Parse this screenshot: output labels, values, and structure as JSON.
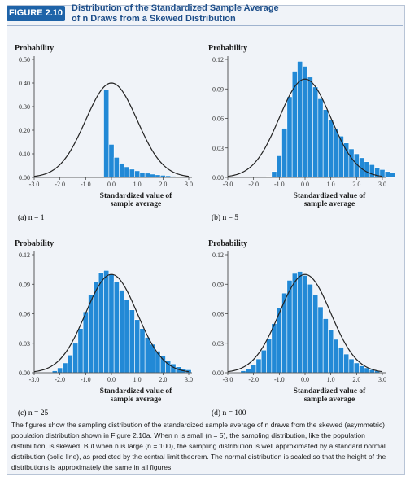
{
  "header": {
    "badge": "FIGURE 2.10",
    "title_line1": "Distribution of the Standardized Sample Average",
    "title_line2": "of n Draws from a Skewed Distribution"
  },
  "caption": "The figures show the sampling distribution of the standardized sample average of n draws from the skewed (asymmetric) population distribution shown in Figure 2.10a. When n is small (n = 5), the sampling distribution, like the population distribution, is skewed. But when n is large (n = 100), the sampling distribution is well approximated by a standard normal distribution (solid line), as predicted by the central limit theorem. The normal distribution is scaled so that the height of the distributions is approximately the same in all figures.",
  "colors": {
    "bar": "#2289d6",
    "bar_edge": "#ffffff",
    "curve": "#222222",
    "accent": "#1e63a8"
  },
  "chart_data": [
    {
      "type": "bar",
      "subcaption": "(a) n = 1",
      "ylabel": "Probability",
      "xlabel_line1": "Standardized value of",
      "xlabel_line2": "sample average",
      "ylim": [
        0,
        0.5
      ],
      "yticks": [
        "0.00",
        "0.10",
        "0.20",
        "0.30",
        "0.40",
        "0.50"
      ],
      "xlim": [
        -3.0,
        3.0
      ],
      "xticks": [
        "-3.0",
        "-2.0",
        "-1.0",
        "0.0",
        "1.0",
        "2.0",
        "3.0"
      ],
      "bin_start": -0.3,
      "bin_width": 0.2,
      "values": [
        0.37,
        0.14,
        0.085,
        0.06,
        0.045,
        0.035,
        0.028,
        0.022,
        0.018,
        0.014,
        0.011,
        0.009,
        0.007,
        0.005,
        0.004,
        0.003
      ],
      "normal_peak": 0.4
    },
    {
      "type": "bar",
      "subcaption": "(b) n = 5",
      "ylabel": "Probability",
      "xlabel_line1": "Standardized value of",
      "xlabel_line2": "sample average",
      "ylim": [
        0,
        0.12
      ],
      "yticks": [
        "0.00",
        "0.03",
        "0.06",
        "0.09",
        "0.12"
      ],
      "xlim": [
        -3.0,
        3.0
      ],
      "xticks": [
        "-3.0",
        "-2.0",
        "-1.0",
        "0.0",
        "1.0",
        "2.0",
        "3.0"
      ],
      "bin_start": -1.5,
      "bin_width": 0.2,
      "values": [
        0.001,
        0.006,
        0.022,
        0.05,
        0.082,
        0.108,
        0.118,
        0.113,
        0.102,
        0.092,
        0.08,
        0.069,
        0.059,
        0.05,
        0.042,
        0.035,
        0.029,
        0.024,
        0.02,
        0.016,
        0.013,
        0.01,
        0.008,
        0.006,
        0.005
      ],
      "normal_peak": 0.1
    },
    {
      "type": "bar",
      "subcaption": "(c) n = 25",
      "ylabel": "Probability",
      "xlabel_line1": "Standardized value of",
      "xlabel_line2": "sample average",
      "ylim": [
        0,
        0.12
      ],
      "yticks": [
        "0.00",
        "0.03",
        "0.06",
        "0.09",
        "0.12"
      ],
      "xlim": [
        -3.0,
        3.0
      ],
      "xticks": [
        "-3.0",
        "-2.0",
        "-1.0",
        "0.0",
        "1.0",
        "2.0",
        "3.0"
      ],
      "bin_start": -2.3,
      "bin_width": 0.2,
      "values": [
        0.002,
        0.005,
        0.01,
        0.018,
        0.03,
        0.045,
        0.062,
        0.079,
        0.093,
        0.102,
        0.104,
        0.1,
        0.093,
        0.084,
        0.074,
        0.064,
        0.054,
        0.045,
        0.036,
        0.029,
        0.022,
        0.017,
        0.012,
        0.009,
        0.006,
        0.004,
        0.003
      ],
      "normal_peak": 0.1
    },
    {
      "type": "bar",
      "subcaption": "(d) n = 100",
      "ylabel": "Probability",
      "xlabel_line1": "Standardized value of",
      "xlabel_line2": "sample average",
      "ylim": [
        0,
        0.12
      ],
      "yticks": [
        "0.00",
        "0.03",
        "0.06",
        "0.09",
        "0.12"
      ],
      "xlim": [
        -3.0,
        3.0
      ],
      "xticks": [
        "-3.0",
        "-2.0",
        "-1.0",
        "0.0",
        "1.0",
        "2.0",
        "3.0"
      ],
      "bin_start": -2.5,
      "bin_width": 0.2,
      "values": [
        0.002,
        0.004,
        0.008,
        0.014,
        0.023,
        0.035,
        0.05,
        0.066,
        0.081,
        0.094,
        0.101,
        0.103,
        0.099,
        0.09,
        0.079,
        0.067,
        0.055,
        0.044,
        0.034,
        0.026,
        0.019,
        0.014,
        0.01,
        0.007,
        0.005,
        0.003,
        0.002
      ],
      "normal_peak": 0.1
    }
  ]
}
